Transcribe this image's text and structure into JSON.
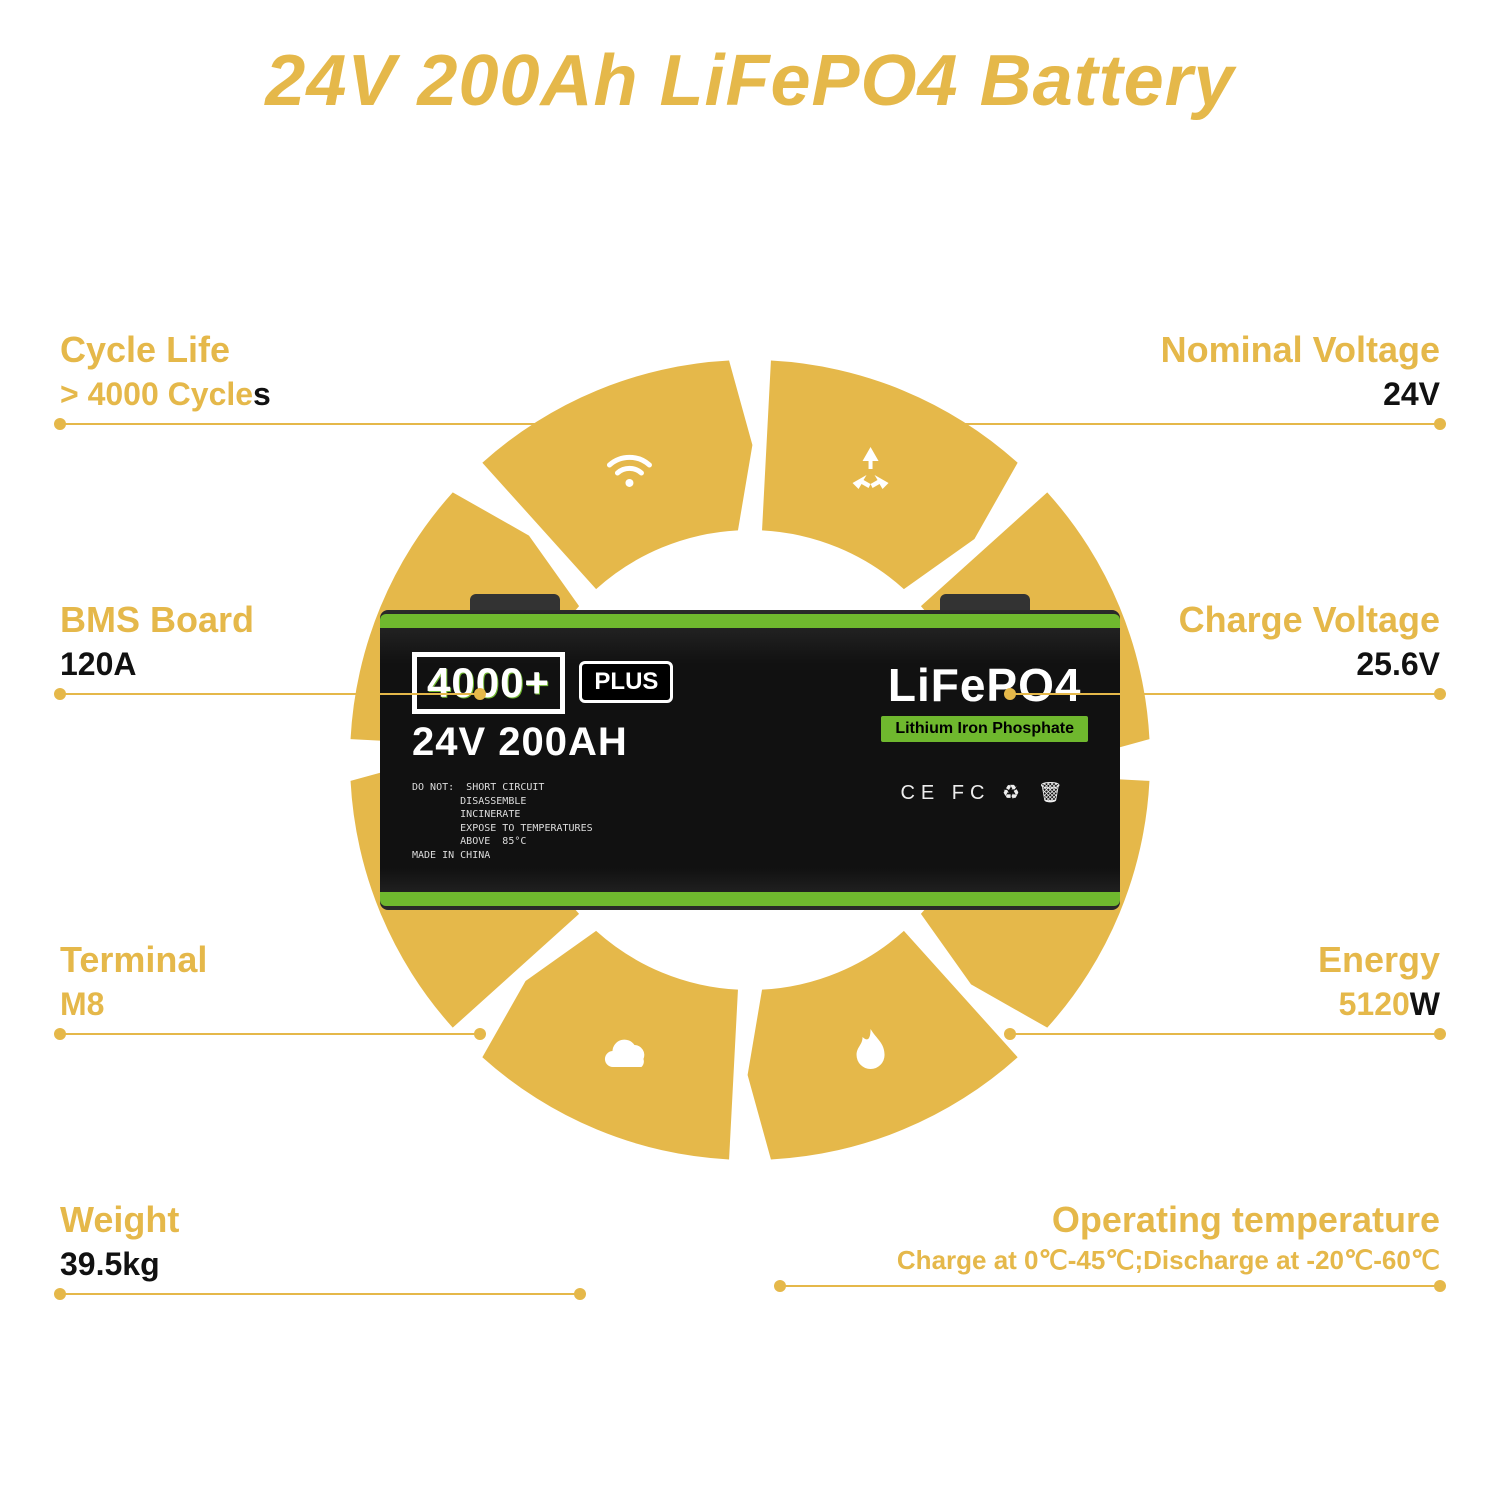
{
  "colors": {
    "gold": "#e5b84a",
    "green": "#6fb82e",
    "black": "#111111",
    "text": "#111111",
    "bg": "#ffffff",
    "icon": "#ffffff"
  },
  "title": "24V 200Ah LiFePO4 Battery",
  "title_fontsize": 72,
  "ring": {
    "outer_radius": 400,
    "inner_radius": 230,
    "segments": 8,
    "gap_deg": 6,
    "color": "#e5b84a",
    "icons": [
      "recycle",
      "battery",
      "bolt",
      "flame",
      "cloud",
      "lock",
      "gear",
      "wifi"
    ]
  },
  "specs": {
    "left": [
      {
        "label": "Cycle Life",
        "value_html": "<span class='accent'>> 4000 Cycle</span>s"
      },
      {
        "label": "BMS Board",
        "value_html": "120A"
      },
      {
        "label": "Terminal",
        "value_html": "<span class='accent'>M8</span>"
      },
      {
        "label": "Weight",
        "value_html": "39.5kg"
      }
    ],
    "right": [
      {
        "label": "Nominal Voltage",
        "value_html": "24V"
      },
      {
        "label": "Charge Voltage",
        "value_html": "25.6V"
      },
      {
        "label": "Energy",
        "value_html": "<span class='accent'>5120</span>W"
      },
      {
        "label": "Operating temperature",
        "value_html": "<span class='accent'>Charge at 0℃-45℃;Discharge at -20℃-60℃</span>"
      }
    ]
  },
  "battery": {
    "cycles_box": "4000+",
    "plus_tag": "PLUS",
    "voltage_capacity": "24V 200AH",
    "chemistry": "LiFePO4",
    "chemistry_sub": "Lithium Iron Phosphate",
    "warnings": "DO NOT:  SHORT CIRCUIT\n        DISASSEMBLE\n        INCINERATE\n        EXPOSE TO TEMPERATURES\n        ABOVE  85°C\nMADE IN CHINA",
    "cert_text": "CE  FC  ♻  🗑"
  }
}
